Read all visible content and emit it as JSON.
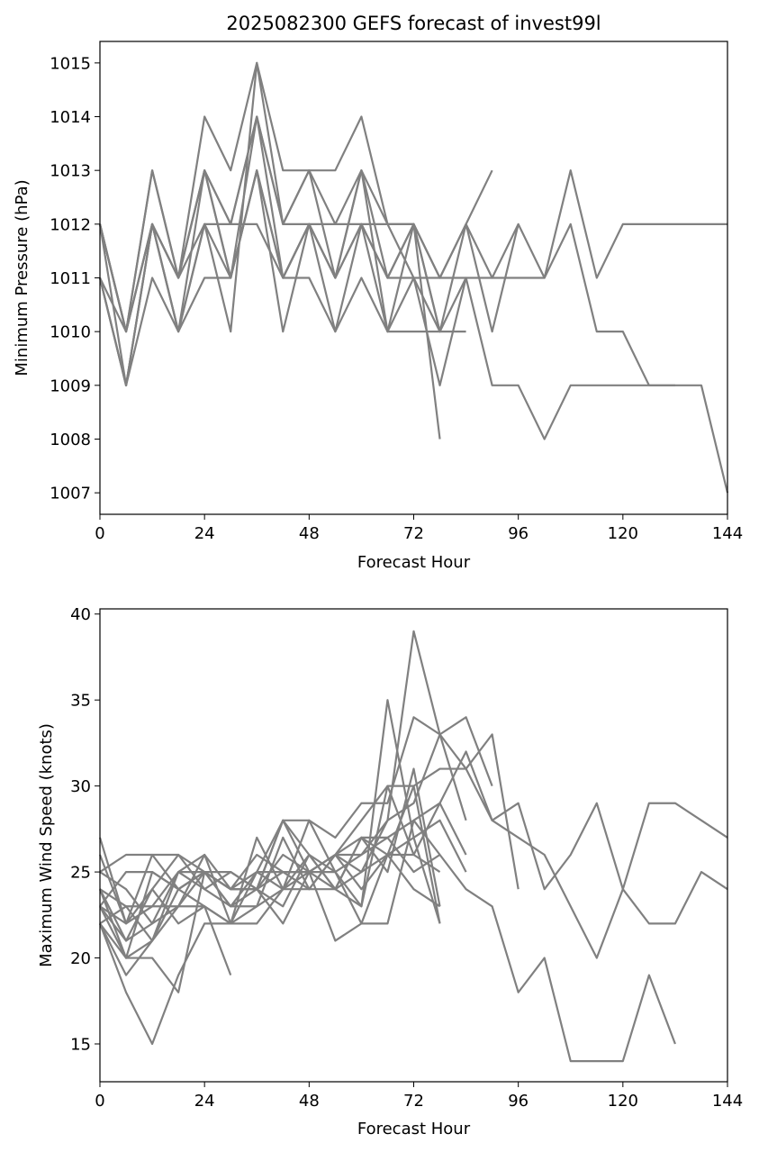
{
  "chart_data": [
    {
      "type": "line",
      "title": "2025082300 GEFS forecast of invest99l",
      "xlabel": "Forecast Hour",
      "ylabel": "Minimum Pressure (hPa)",
      "xlim": [
        0,
        144
      ],
      "ylim": [
        1006.6,
        1015.4
      ],
      "xticks": [
        0,
        24,
        48,
        72,
        96,
        120,
        144
      ],
      "yticks": [
        1007,
        1008,
        1009,
        1010,
        1011,
        1012,
        1013,
        1014,
        1015
      ],
      "line_color": "#808080",
      "grid": false,
      "legend": "none",
      "series": [
        {
          "x": [
            0,
            6,
            12,
            18,
            24,
            30,
            36,
            42,
            48,
            54,
            60,
            66,
            72,
            78,
            84,
            90
          ],
          "values": [
            1012,
            1010,
            1013,
            1011,
            1014,
            1013,
            1015,
            1013,
            1013,
            1013,
            1014,
            1012,
            1012,
            1011,
            1012,
            1013
          ]
        },
        {
          "x": [
            0,
            6,
            12,
            18,
            24,
            30,
            36,
            42,
            48,
            54,
            60,
            66,
            72,
            78,
            84,
            90,
            96,
            102,
            108,
            114,
            120,
            126,
            132,
            138,
            144
          ],
          "values": [
            1011,
            1009,
            1012,
            1010,
            1012,
            1012,
            1014,
            1012,
            1012,
            1012,
            1012,
            1012,
            1012,
            1011,
            1012,
            1011,
            1012,
            1011,
            1013,
            1011,
            1012,
            1012,
            1012,
            1012,
            1012
          ]
        },
        {
          "x": [
            0,
            6,
            12,
            18,
            24,
            30,
            36,
            42,
            48,
            54,
            60,
            66,
            72,
            78,
            84,
            90,
            96,
            102,
            108,
            114,
            120,
            126,
            132,
            138,
            144
          ],
          "values": [
            1012,
            1010,
            1012,
            1011,
            1013,
            1011,
            1014,
            1012,
            1013,
            1011,
            1013,
            1011,
            1012,
            1010,
            1011,
            1011,
            1011,
            1011,
            1012,
            1010,
            1010,
            1009,
            1009,
            1009,
            1007
          ]
        },
        {
          "x": [
            0,
            6,
            12,
            18,
            24,
            30,
            36,
            42,
            48,
            54,
            60,
            66,
            72,
            78,
            84,
            90,
            96,
            102,
            108,
            114,
            120,
            126,
            132
          ],
          "values": [
            1011,
            1009,
            1011,
            1010,
            1012,
            1011,
            1013,
            1011,
            1012,
            1011,
            1012,
            1011,
            1011,
            1011,
            1011,
            1009,
            1009,
            1008,
            1009,
            1009,
            1009,
            1009,
            1009
          ]
        },
        {
          "x": [
            0,
            6,
            12,
            18,
            24,
            30,
            36,
            42,
            48,
            54,
            60,
            66,
            72,
            78
          ],
          "values": [
            1012,
            1009,
            1012,
            1010,
            1011,
            1011,
            1013,
            1010,
            1012,
            1010,
            1012,
            1010,
            1012,
            1008
          ]
        },
        {
          "x": [
            0,
            6,
            12,
            18,
            24,
            30,
            36,
            42,
            48,
            54,
            60,
            66,
            72,
            78,
            84,
            90,
            96
          ],
          "values": [
            1011,
            1010,
            1012,
            1011,
            1013,
            1012,
            1014,
            1011,
            1012,
            1011,
            1013,
            1012,
            1011,
            1010,
            1012,
            1010,
            1012
          ]
        },
        {
          "x": [
            0,
            6,
            12,
            18,
            24,
            30,
            36,
            42,
            48,
            54,
            60,
            66,
            72,
            78,
            84
          ],
          "values": [
            1011,
            1009,
            1012,
            1011,
            1012,
            1010,
            1015,
            1012,
            1013,
            1012,
            1013,
            1010,
            1010,
            1010,
            1010
          ]
        },
        {
          "x": [
            0,
            6,
            12,
            18,
            24,
            30,
            36,
            42,
            48,
            54,
            60,
            66,
            72,
            78,
            84
          ],
          "values": [
            1012,
            1010,
            1013,
            1011,
            1013,
            1011,
            1013,
            1011,
            1011,
            1010,
            1011,
            1010,
            1011,
            1009,
            1011
          ]
        },
        {
          "x": [
            0,
            6,
            12,
            18,
            24,
            30,
            36,
            42,
            48,
            54,
            60,
            66,
            72,
            78
          ],
          "values": [
            1012,
            1010,
            1012,
            1010,
            1013,
            1012,
            1012,
            1011,
            1012,
            1011,
            1012,
            1011,
            1012,
            1010
          ]
        }
      ]
    },
    {
      "type": "line",
      "title": "",
      "xlabel": "Forecast Hour",
      "ylabel": "Maximum Wind Speed (knots)",
      "xlim": [
        0,
        144
      ],
      "ylim": [
        12.8,
        40.3
      ],
      "xticks": [
        0,
        24,
        48,
        72,
        96,
        120,
        144
      ],
      "yticks": [
        15,
        20,
        25,
        30,
        35,
        40
      ],
      "line_color": "#808080",
      "grid": false,
      "legend": "none",
      "series": [
        {
          "x": [
            0,
            6,
            12,
            18,
            24,
            30,
            36,
            42,
            48,
            54,
            60,
            66,
            72,
            78
          ],
          "values": [
            27,
            22,
            24,
            26,
            24,
            25,
            24,
            23,
            26,
            25,
            22,
            26,
            30,
            22
          ]
        },
        {
          "x": [
            0,
            6,
            12,
            18,
            24,
            30,
            36,
            42,
            48,
            54,
            60,
            66,
            72,
            78,
            84,
            90
          ],
          "values": [
            25,
            26,
            26,
            26,
            25,
            24,
            24,
            28,
            28,
            27,
            29,
            29,
            34,
            33,
            34,
            30
          ]
        },
        {
          "x": [
            0,
            6,
            12,
            18,
            24,
            30,
            36,
            42,
            48,
            54,
            60,
            66,
            72,
            78,
            84,
            90,
            96,
            102,
            108,
            114,
            120,
            126,
            132,
            138,
            144
          ],
          "values": [
            24,
            23,
            23,
            23,
            25,
            24,
            25,
            28,
            25,
            26,
            28,
            30,
            30,
            31,
            31,
            28,
            29,
            24,
            26,
            29,
            24,
            29,
            29,
            28,
            27
          ]
        },
        {
          "x": [
            0,
            6,
            12,
            18,
            24,
            30,
            36,
            42,
            48,
            54,
            60,
            66,
            72,
            78,
            84,
            90,
            96
          ],
          "values": [
            23,
            25,
            25,
            24,
            25,
            24,
            26,
            25,
            25,
            26,
            26,
            28,
            29,
            33,
            31,
            33,
            24
          ]
        },
        {
          "x": [
            0,
            6,
            12,
            18,
            24,
            30,
            36,
            42,
            48,
            54,
            60,
            66,
            72,
            78,
            84,
            90,
            96,
            102,
            108,
            114,
            120,
            126,
            132,
            138,
            144
          ],
          "values": [
            22,
            18,
            15,
            19,
            22,
            22,
            22,
            24,
            24,
            24,
            27,
            26,
            26,
            29,
            32,
            28,
            27,
            26,
            23,
            20,
            24,
            22,
            22,
            25,
            24
          ]
        },
        {
          "x": [
            0,
            6,
            12,
            18,
            24,
            30,
            36,
            42,
            48,
            54,
            60,
            66,
            72,
            78,
            84,
            90,
            96,
            102,
            108,
            114,
            120,
            126,
            132
          ],
          "values": [
            23,
            20,
            20,
            18,
            25,
            23,
            24,
            22,
            25,
            21,
            22,
            22,
            28,
            26,
            24,
            23,
            18,
            20,
            14,
            14,
            14,
            19,
            15
          ]
        },
        {
          "x": [
            0,
            6,
            12,
            18,
            24,
            30,
            36,
            42,
            48,
            54,
            60,
            66,
            72,
            78,
            84
          ],
          "values": [
            22,
            19,
            21,
            24,
            25,
            24,
            24,
            26,
            25,
            26,
            24,
            26,
            27,
            28,
            25
          ]
        },
        {
          "x": [
            0,
            6,
            12,
            18,
            24,
            30,
            36,
            42,
            48,
            54,
            60,
            66,
            72,
            78
          ],
          "values": [
            25,
            24,
            22,
            23,
            26,
            22,
            27,
            24,
            28,
            25,
            23,
            35,
            27,
            22
          ]
        },
        {
          "x": [
            0,
            6,
            12,
            18,
            24,
            30,
            36,
            42,
            48,
            54,
            60,
            66,
            72,
            78
          ],
          "values": [
            24,
            21,
            22,
            25,
            24,
            23,
            23,
            27,
            24,
            26,
            27,
            25,
            31,
            23
          ]
        },
        {
          "x": [
            0,
            6,
            12,
            18,
            24,
            30,
            36,
            42,
            48,
            54,
            60,
            66,
            72,
            78,
            84
          ],
          "values": [
            23,
            21,
            24,
            22,
            23,
            22,
            25,
            25,
            24,
            26,
            25,
            28,
            39,
            33,
            28
          ]
        },
        {
          "x": [
            0,
            6,
            12,
            18,
            24,
            30
          ],
          "values": [
            22,
            23,
            21,
            23,
            23,
            19
          ]
        },
        {
          "x": [
            0,
            6,
            12,
            18,
            24,
            30,
            36,
            42,
            48,
            54,
            60,
            66,
            72,
            78
          ],
          "values": [
            22,
            20,
            25,
            24,
            23,
            22,
            23,
            24,
            26,
            24,
            23,
            30,
            26,
            25
          ]
        },
        {
          "x": [
            0,
            6,
            12,
            18,
            24,
            30,
            36,
            42,
            48,
            54,
            60,
            66,
            72,
            78
          ],
          "values": [
            23,
            22,
            23,
            25,
            25,
            25,
            24,
            25,
            25,
            25,
            26,
            27,
            25,
            26
          ]
        },
        {
          "x": [
            0,
            6,
            12,
            18,
            24,
            30,
            36,
            42,
            48,
            54,
            60,
            66,
            72,
            78,
            84
          ],
          "values": [
            26,
            22,
            26,
            24,
            25,
            23,
            25,
            24,
            25,
            24,
            27,
            27,
            28,
            29,
            26
          ]
        },
        {
          "x": [
            0,
            6,
            12,
            18,
            24,
            30,
            36,
            42,
            48,
            54,
            60,
            66,
            72,
            78
          ],
          "values": [
            24,
            20,
            21,
            25,
            26,
            24,
            24,
            28,
            26,
            24,
            25,
            26,
            24,
            23
          ]
        }
      ]
    }
  ]
}
